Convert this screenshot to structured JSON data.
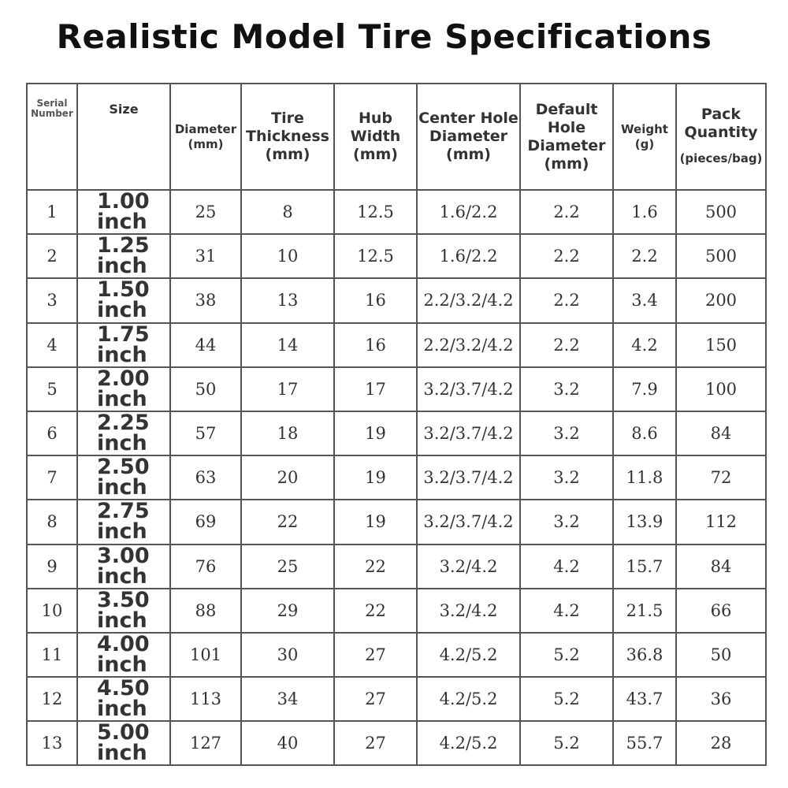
{
  "title": "Realistic Model Tire Specifications",
  "table": {
    "headers": [
      [
        "Serial",
        "Number"
      ],
      [
        "Size"
      ],
      [
        "Diameter",
        "(mm)"
      ],
      [
        "Tire",
        "Thickness",
        "(mm)"
      ],
      [
        "Hub",
        "Width",
        "(mm)"
      ],
      [
        "Center Hole",
        "Diameter",
        "(mm)"
      ],
      [
        "Default",
        "Hole",
        "Diameter",
        "(mm)"
      ],
      [
        "Weight",
        "(g)"
      ],
      [
        "Pack",
        "Quantity",
        "(pieces/bag)"
      ]
    ],
    "rows": [
      [
        1,
        "1.00 inch",
        25,
        8,
        12.5,
        "1.6/2.2",
        2.2,
        1.6,
        500
      ],
      [
        2,
        "1.25 inch",
        31,
        10,
        12.5,
        "1.6/2.2",
        2.2,
        2.2,
        500
      ],
      [
        3,
        "1.50 inch",
        38,
        13,
        16,
        "2.2/3.2/4.2",
        2.2,
        3.4,
        200
      ],
      [
        4,
        "1.75 inch",
        44,
        14,
        16,
        "2.2/3.2/4.2",
        2.2,
        4.2,
        150
      ],
      [
        5,
        "2.00 inch",
        50,
        17,
        17,
        "3.2/3.7/4.2",
        3.2,
        7.9,
        100
      ],
      [
        6,
        "2.25 inch",
        57,
        18,
        19,
        "3.2/3.7/4.2",
        3.2,
        8.6,
        84
      ],
      [
        7,
        "2.50 inch",
        63,
        20,
        19,
        "3.2/3.7/4.2",
        3.2,
        11.8,
        72
      ],
      [
        8,
        "2.75 inch",
        69,
        22,
        19,
        "3.2/3.7/4.2",
        3.2,
        13.9,
        112
      ],
      [
        9,
        "3.00 inch",
        76,
        25,
        22,
        "3.2/4.2",
        4.2,
        15.7,
        84
      ],
      [
        10,
        "3.50 inch",
        88,
        29,
        22,
        "3.2/4.2",
        4.2,
        21.5,
        66
      ],
      [
        11,
        "4.00 inch",
        101,
        30,
        27,
        "4.2/5.2",
        5.2,
        36.8,
        50
      ],
      [
        12,
        "4.50 inch",
        113,
        34,
        27,
        "4.2/5.2",
        5.2,
        43.7,
        36
      ],
      [
        13,
        "5.00 inch",
        127,
        40,
        27,
        "4.2/5.2",
        5.2,
        55.7,
        28
      ]
    ]
  }
}
